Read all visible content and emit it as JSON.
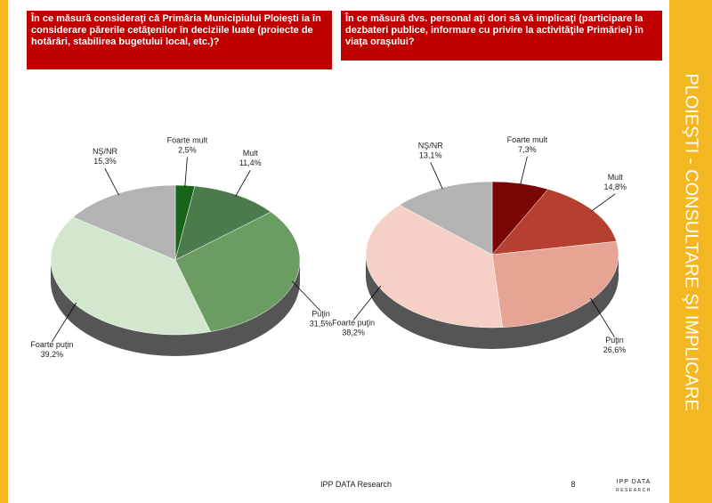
{
  "chart_data": [
    {
      "type": "pie",
      "title": "În ce măsură consideraţi că Primăria Municipiului Ploieşti ia în considerare părerile cetăţenilor în deciziile luate (proiecte de hotărâri, stabilirea bugetului local, etc.)?",
      "categories": [
        "Foarte mult",
        "Mult",
        "Puţin",
        "Foarte puţin",
        "NŞ/NR"
      ],
      "values": [
        2.5,
        11.4,
        31.5,
        39.2,
        15.3
      ],
      "value_labels": [
        "2,5%",
        "11,4%",
        "31,5%",
        "39,2%",
        "15,3%"
      ],
      "colors": [
        "#17651a",
        "#4b7a4b",
        "#6b9d63",
        "#d3e7cf",
        "#b3b3b3"
      ]
    },
    {
      "type": "pie",
      "title": "În ce măsură dvs. personal aţi dori să vă implicaţi (participare la dezbateri publice, informare cu privire la activităţile Primăriei) în viaţa oraşului?",
      "categories": [
        "Foarte mult",
        "Mult",
        "Puţin",
        "Foarte puţin",
        "NŞ/NR"
      ],
      "values": [
        7.3,
        14.8,
        26.6,
        38.2,
        13.1
      ],
      "value_labels": [
        "7,3%",
        "14,8%",
        "26,6%",
        "38,2%",
        "13,1%"
      ],
      "colors": [
        "#7a0505",
        "#b5402f",
        "#e6a594",
        "#f6cfc6",
        "#b3b3b3"
      ]
    }
  ],
  "sidebar": {
    "title": "PLOIEŞTI - CONSULTARE ŞI IMPLICARE"
  },
  "footer": {
    "source": "IPP DATA Research",
    "page": "8",
    "logo": [
      "IPP DATA",
      "RESEARCH"
    ]
  }
}
